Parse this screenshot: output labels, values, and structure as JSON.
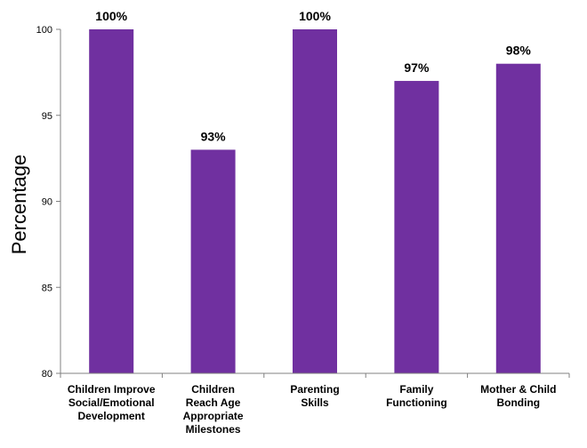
{
  "chart_data": {
    "type": "bar",
    "categories": [
      [
        "Children Improve",
        "Social/Emotional",
        "Development"
      ],
      [
        "Children",
        "Reach Age",
        "Appropriate",
        "Milestones"
      ],
      [
        "Parenting",
        "Skills"
      ],
      [
        "Family",
        "Functioning"
      ],
      [
        "Mother & Child",
        "Bonding"
      ]
    ],
    "values": [
      100,
      93,
      100,
      97,
      98
    ],
    "data_labels": [
      "100%",
      "93%",
      "100%",
      "97%",
      "98%"
    ],
    "ylabel": "Percentage",
    "ylim": [
      80,
      100
    ],
    "yticks": [
      80,
      85,
      90,
      95,
      100
    ],
    "grid": false,
    "legend": "none",
    "bar_color": "#7030A0"
  }
}
